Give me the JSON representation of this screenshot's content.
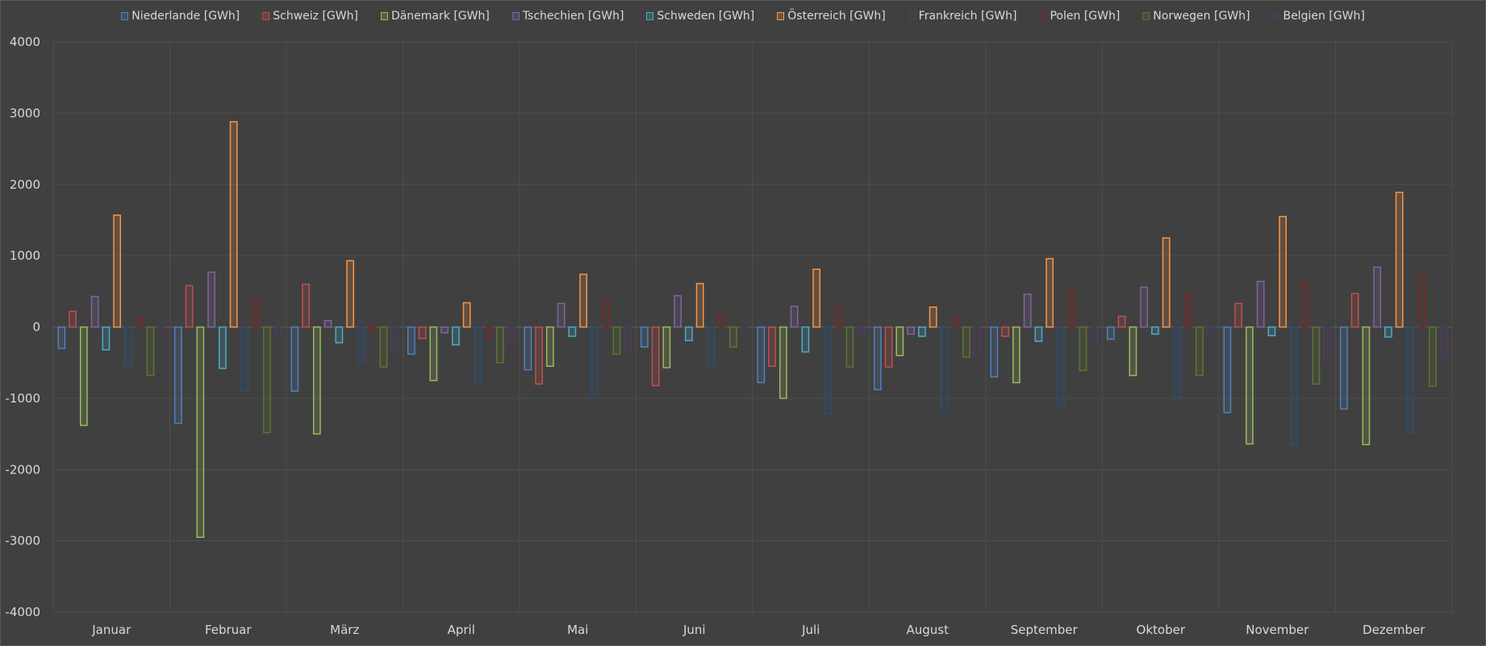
{
  "chart_data": {
    "type": "bar",
    "title": "",
    "xlabel": "",
    "ylabel": "",
    "ylim": [
      -4000,
      4000
    ],
    "yticks": [
      4000,
      3000,
      2000,
      1000,
      0,
      -1000,
      -2000,
      -3000,
      -4000
    ],
    "grid": true,
    "legend_position": "top",
    "categories": [
      "Januar",
      "Februar",
      "März",
      "April",
      "Mai",
      "Juni",
      "Juli",
      "August",
      "September",
      "Oktober",
      "November",
      "Dezember"
    ],
    "series": [
      {
        "name": "Niederlande [GWh]",
        "color": "#4f81bd",
        "values": [
          -300,
          -1350,
          -900,
          -380,
          -600,
          -280,
          -780,
          -880,
          -700,
          -170,
          -1200,
          -1150
        ]
      },
      {
        "name": "Schweiz [GWh]",
        "color": "#c0504d",
        "values": [
          220,
          580,
          600,
          -160,
          -800,
          -820,
          -550,
          -560,
          -130,
          150,
          330,
          470
        ]
      },
      {
        "name": "Dänemark [GWh]",
        "color": "#9bbb59",
        "values": [
          -1380,
          -2950,
          -1500,
          -750,
          -550,
          -570,
          -1000,
          -400,
          -780,
          -680,
          -1640,
          -1650
        ]
      },
      {
        "name": "Tschechien [GWh]",
        "color": "#8064a2",
        "values": [
          430,
          770,
          90,
          -80,
          330,
          440,
          290,
          -100,
          460,
          560,
          640,
          840
        ]
      },
      {
        "name": "Schweden [GWh]",
        "color": "#4bacc6",
        "values": [
          -320,
          -580,
          -220,
          -250,
          -130,
          -190,
          -350,
          -130,
          -200,
          -100,
          -120,
          -140
        ]
      },
      {
        "name": "Österreich [GWh]",
        "color": "#f79646",
        "values": [
          1570,
          2880,
          930,
          340,
          740,
          610,
          810,
          280,
          960,
          1250,
          1550,
          1890
        ]
      },
      {
        "name": "Frankreich [GWh]",
        "color": "#2c4d75",
        "values": [
          -550,
          -900,
          -500,
          -800,
          -950,
          -550,
          -1220,
          -1180,
          -1120,
          -980,
          -1650,
          -1480
        ]
      },
      {
        "name": "Polen [GWh]",
        "color": "#772c2a",
        "values": [
          120,
          360,
          -50,
          -150,
          380,
          210,
          290,
          130,
          480,
          480,
          640,
          720
        ]
      },
      {
        "name": "Norwegen [GWh]",
        "color": "#5f7530",
        "values": [
          -680,
          -1480,
          -560,
          -500,
          -380,
          -280,
          -560,
          -420,
          -610,
          -680,
          -800,
          -830
        ]
      },
      {
        "name": "Belgien [GWh]",
        "color": "#4d3b62",
        "values": [
          -70,
          -110,
          -340,
          -220,
          -320,
          -60,
          -100,
          -380,
          -240,
          -90,
          -500,
          -420
        ]
      }
    ]
  }
}
